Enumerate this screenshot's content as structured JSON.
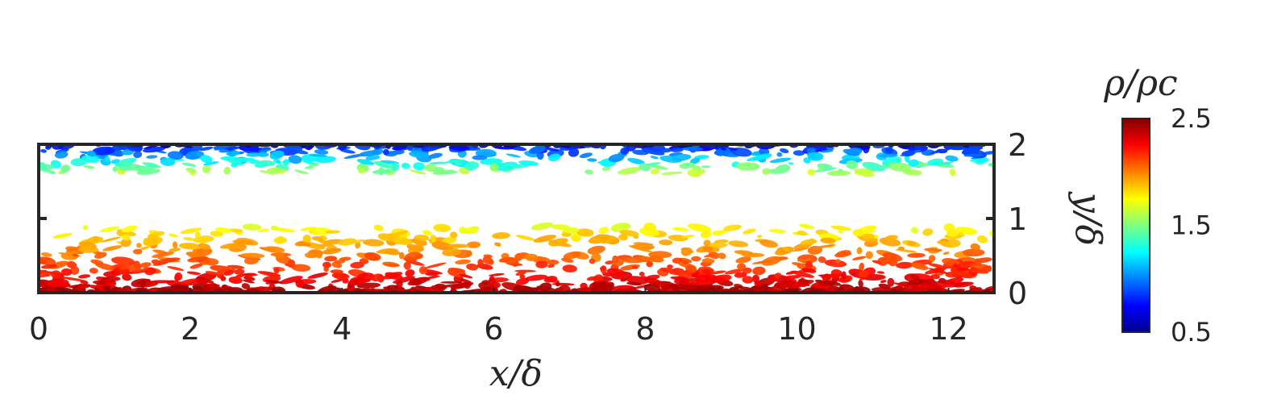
{
  "chart_data": {
    "type": "heatmap",
    "description_kind": "isosurface field rendering",
    "xlabel": "x/δ",
    "ylabel": "y/δ",
    "xlim": [
      0,
      12.6
    ],
    "ylim": [
      0,
      2
    ],
    "x_ticks": [
      0,
      2,
      4,
      6,
      8,
      10,
      12
    ],
    "y_ticks": [
      0,
      1,
      2
    ],
    "y_axis_side": "right",
    "grid": false,
    "colorbar": {
      "title": "ρ/ρc",
      "range": [
        0.5,
        2.5
      ],
      "ticks": [
        0.5,
        1.5,
        2.5
      ],
      "colormap": "jet",
      "placement": "right"
    },
    "regions": [
      {
        "name": "lower-wall",
        "y_range": [
          0,
          0.9
        ],
        "value_range": [
          1.8,
          2.5
        ]
      },
      {
        "name": "upper-wall",
        "y_range": [
          1.6,
          2
        ],
        "value_range": [
          0.6,
          1.6
        ]
      }
    ]
  }
}
